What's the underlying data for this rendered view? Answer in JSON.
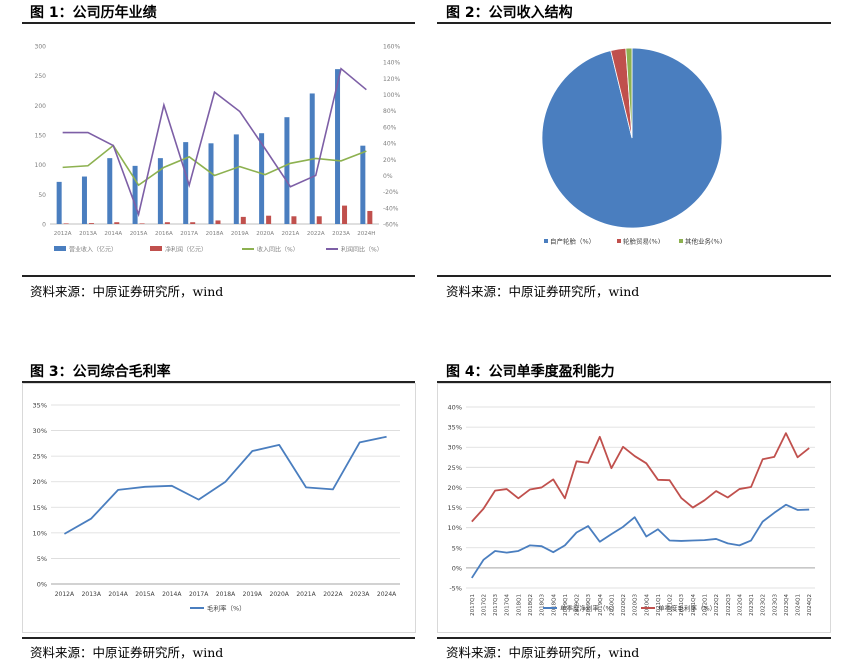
{
  "source_text": "资料来源：中原证券研究所，wind",
  "fig1": {
    "title": "图 1：公司历年业绩",
    "chart_data": {
      "type": "bar",
      "categories": [
        "2012A",
        "2013A",
        "2014A",
        "2015A",
        "2016A",
        "2017A",
        "2018A",
        "2019A",
        "2020A",
        "2021A",
        "2022A",
        "2023A",
        "2024H"
      ],
      "left_ticks": [
        "0",
        "50",
        "100",
        "150",
        "200",
        "250",
        "300"
      ],
      "right_ticks": [
        "-60%",
        "-40%",
        "-20%",
        "0%",
        "20%",
        "40%",
        "60%",
        "80%",
        "100%",
        "120%",
        "140%",
        "160%"
      ],
      "ylim": [
        0,
        300
      ],
      "y2lim": [
        -60,
        160
      ],
      "series": [
        {
          "name": "营业收入（亿元）",
          "type": "bar",
          "axis": "left",
          "color": "#4a7ebf",
          "values": [
            71,
            80,
            111,
            98,
            111,
            138,
            136,
            151,
            153,
            180,
            220,
            261,
            132
          ]
        },
        {
          "name": "净利润（亿元）",
          "type": "bar",
          "axis": "left",
          "color": "#c0504d",
          "values": [
            1,
            1.5,
            3,
            1,
            3,
            3,
            6,
            12,
            14,
            13,
            13,
            31,
            22
          ]
        },
        {
          "name": "收入同比（%）",
          "type": "line",
          "axis": "right",
          "color": "#8db150",
          "values": [
            10,
            12,
            37,
            -12,
            10,
            23,
            0,
            11,
            1,
            15,
            21,
            18,
            30
          ]
        },
        {
          "name": "利润同比（%）",
          "type": "line",
          "axis": "right",
          "color": "#7d5fa6",
          "values": [
            53,
            53,
            37,
            -48,
            87,
            -12,
            103,
            79,
            33,
            -14,
            0,
            132,
            106
          ]
        }
      ],
      "legend_position": "bottom"
    }
  },
  "fig2": {
    "title": "图 2：公司收入结构",
    "chart_data": {
      "type": "pie",
      "labels": [
        "自产轮胎（%）",
        "轮胎贸易(%)",
        "其他业务(%)"
      ],
      "values": [
        96.2,
        2.7,
        1.1
      ],
      "colors": [
        "#4a7ebf",
        "#c0504d",
        "#8db150"
      ],
      "legend_position": "bottom"
    }
  },
  "fig3": {
    "title": "图 3：公司综合毛利率",
    "chart_data": {
      "type": "line",
      "categories": [
        "2012A",
        "2013A",
        "2014A",
        "2015A",
        "2014A",
        "2017A",
        "2018A",
        "2019A",
        "2020A",
        "2021A",
        "2022A",
        "2023A",
        "2024A"
      ],
      "y_ticks": [
        "0%",
        "5%",
        "10%",
        "15%",
        "20%",
        "25%",
        "30%",
        "35%"
      ],
      "ylim": [
        0,
        35
      ],
      "series": [
        {
          "name": "毛利率（%）",
          "color": "#4a7ebf",
          "values": [
            9.8,
            12.8,
            18.4,
            19.0,
            19.2,
            16.5,
            20.0,
            26.0,
            27.2,
            18.9,
            18.5,
            27.7,
            28.8
          ]
        }
      ],
      "legend_position": "bottom"
    }
  },
  "fig4": {
    "title": "图 4：公司单季度盈利能力",
    "chart_data": {
      "type": "line",
      "categories": [
        "2017Q1",
        "2017Q2",
        "2017Q3",
        "2017Q4",
        "2018Q1",
        "2018Q2",
        "2018Q3",
        "2018Q4",
        "2019Q1",
        "2019Q2",
        "2019Q3",
        "2019Q4",
        "2020Q1",
        "2020Q2",
        "2020Q3",
        "2020Q4",
        "2021Q1",
        "2021Q2",
        "2021Q3",
        "2021Q4",
        "2022Q1",
        "2022Q2",
        "2022Q3",
        "2022Q4",
        "2023Q1",
        "2023Q2",
        "2023Q3",
        "2023Q4",
        "2024Q1",
        "2024Q2"
      ],
      "y_ticks": [
        "-5%",
        "0%",
        "5%",
        "10%",
        "15%",
        "20%",
        "25%",
        "30%",
        "35%",
        "40%"
      ],
      "ylim": [
        -5,
        40
      ],
      "series": [
        {
          "name": "单季度净利率（%）",
          "color": "#4a7ebf",
          "values": [
            -2.5,
            2.0,
            4.2,
            3.8,
            4.2,
            5.6,
            5.4,
            3.9,
            5.6,
            8.8,
            10.4,
            6.5,
            8.4,
            10.2,
            12.6,
            7.8,
            9.6,
            6.8,
            6.7,
            6.8,
            6.9,
            7.2,
            6.1,
            5.6,
            6.8,
            11.5,
            13.7,
            15.7,
            14.4,
            14.5
          ]
        },
        {
          "name": "单季度毛利率（%）",
          "color": "#c0504d",
          "values": [
            11.5,
            14.7,
            19.2,
            19.6,
            17.3,
            19.5,
            20.0,
            22.0,
            17.3,
            26.5,
            26.1,
            32.6,
            24.8,
            30.1,
            27.8,
            26.0,
            21.9,
            21.8,
            17.4,
            15.0,
            16.8,
            19.1,
            17.5,
            19.6,
            20.1,
            27.0,
            27.6,
            33.5,
            27.5,
            29.8
          ]
        }
      ],
      "legend_position": "bottom"
    }
  }
}
